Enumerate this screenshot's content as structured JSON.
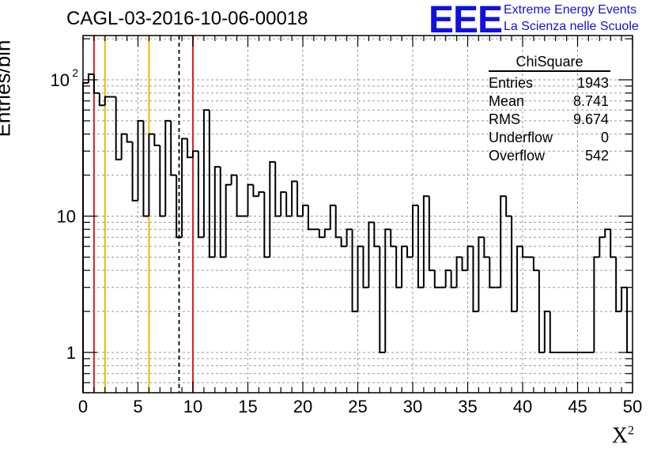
{
  "header": {
    "title": "CAGL-03-2016-10-06-00018",
    "logo_text": "EEE",
    "logo_line1": "Extreme Energy Events",
    "logo_line2": "La Scienza nelle Scuole"
  },
  "stats_box": {
    "title": "ChiSquare",
    "rows": [
      {
        "label": "Entries",
        "value": "1943"
      },
      {
        "label": "Mean",
        "value": "8.741"
      },
      {
        "label": "RMS",
        "value": "9.674"
      },
      {
        "label": "Underflow",
        "value": "0"
      },
      {
        "label": "Overflow",
        "value": "542"
      }
    ]
  },
  "colors": {
    "red_line": "#e02020",
    "yellow_line": "#f0b800",
    "mean_line": "#000000",
    "logo": "#1010e0"
  },
  "chart_data": {
    "type": "bar",
    "subtype": "histogram-step",
    "title": "CAGL-03-2016-10-06-00018",
    "xlabel": "X",
    "xlabel_superscript": "2",
    "ylabel": "Entries/bin",
    "xlim": [
      0,
      50
    ],
    "ylim": [
      0.5,
      200
    ],
    "y_scale": "log",
    "bin_width": 0.5,
    "grid": true,
    "x_ticks": [
      "0",
      "5",
      "10",
      "15",
      "20",
      "25",
      "30",
      "35",
      "40",
      "45",
      "50"
    ],
    "y_ticks": [
      {
        "value": 1,
        "label": "1"
      },
      {
        "value": 10,
        "label": "10"
      },
      {
        "value": 100,
        "label": "10",
        "sup": "2"
      }
    ],
    "values": [
      95,
      110,
      80,
      65,
      75,
      75,
      26,
      40,
      35,
      13,
      50,
      10,
      40,
      33,
      10,
      50,
      20,
      7,
      37,
      27,
      30,
      7,
      60,
      5,
      23,
      5,
      17,
      20,
      10,
      10,
      17,
      14,
      15,
      5,
      25,
      10,
      15,
      10,
      18,
      10,
      12,
      8,
      8,
      7,
      8,
      12,
      7,
      6,
      8,
      2,
      6,
      3,
      9,
      6,
      1,
      8,
      6,
      3,
      6,
      5,
      12,
      3,
      14,
      4,
      3,
      3,
      4,
      3,
      5,
      4,
      6,
      2,
      7,
      5,
      3,
      3,
      14,
      10,
      2,
      6,
      5,
      5,
      4,
      1,
      2,
      1,
      1,
      1,
      1,
      1,
      1,
      1,
      1,
      5,
      7,
      8,
      5,
      2,
      3,
      1
    ],
    "vertical_lines": [
      {
        "x": 1,
        "style": "solid",
        "color": "red"
      },
      {
        "x": 2,
        "style": "solid",
        "color": "yellow"
      },
      {
        "x": 6,
        "style": "solid",
        "color": "yellow"
      },
      {
        "x": 8.741,
        "style": "dashed",
        "color": "black"
      },
      {
        "x": 10,
        "style": "solid",
        "color": "red"
      }
    ],
    "legend": "stats box top-right"
  }
}
